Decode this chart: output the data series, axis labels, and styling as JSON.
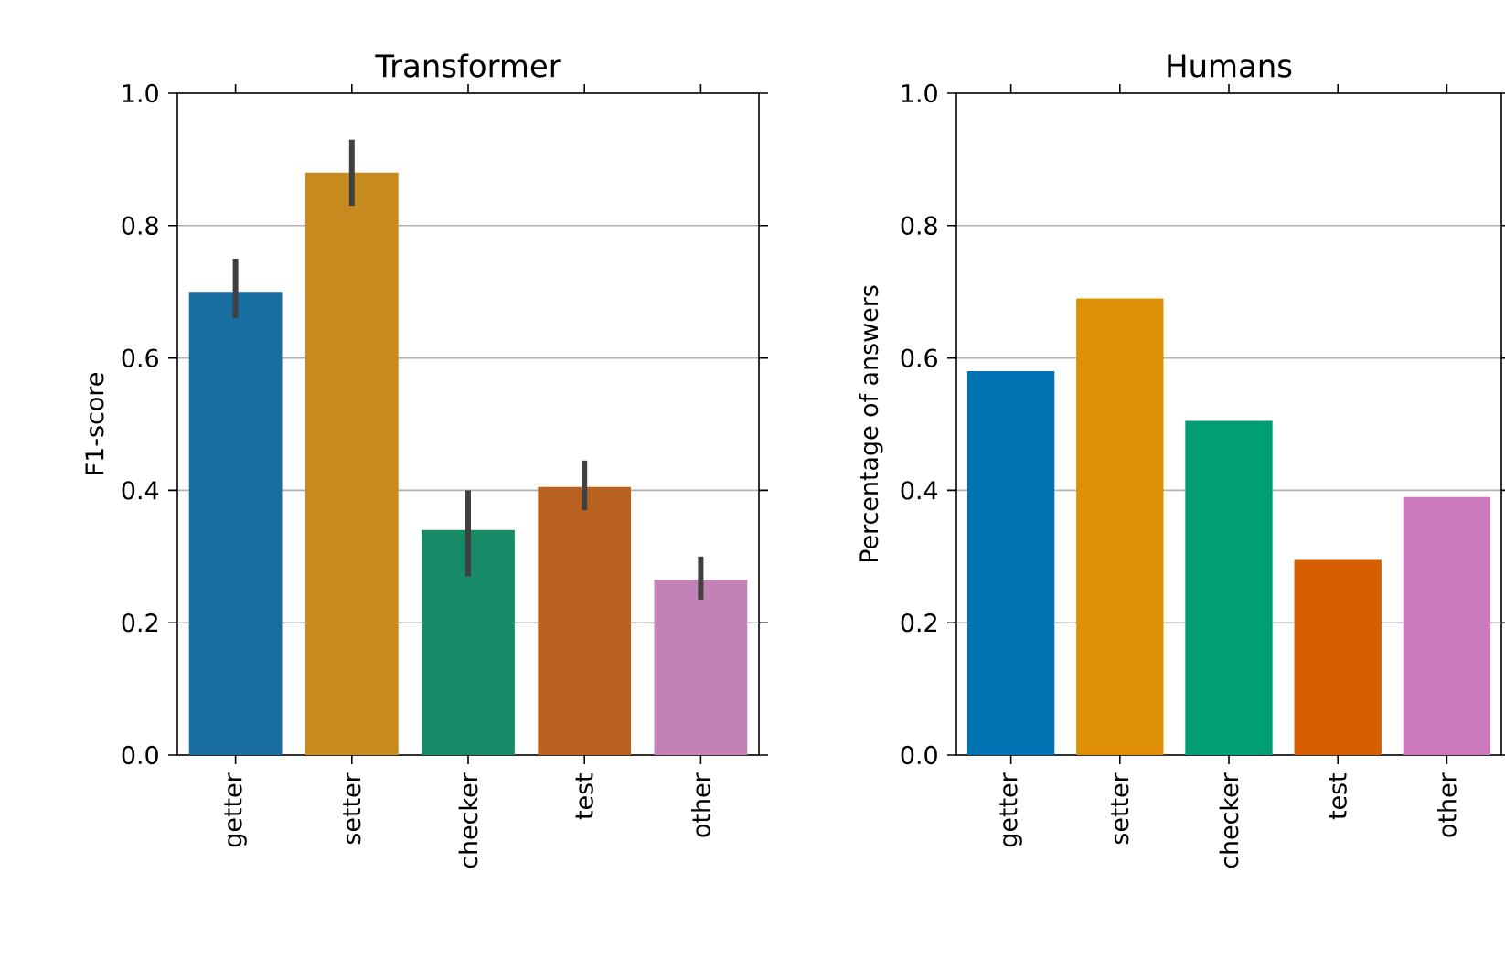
{
  "chart_data": [
    {
      "type": "bar",
      "title": "Transformer",
      "ylabel": "F1-score",
      "categories": [
        "getter",
        "setter",
        "checker",
        "test",
        "other"
      ],
      "values": [
        0.7,
        0.88,
        0.34,
        0.405,
        0.265
      ],
      "colors": [
        "#186ea0",
        "#c68a1e",
        "#178a68",
        "#b9621f",
        "#c282b5"
      ],
      "errors": [
        [
          0.66,
          0.75
        ],
        [
          0.83,
          0.93
        ],
        [
          0.27,
          0.4
        ],
        [
          0.37,
          0.445
        ],
        [
          0.235,
          0.3
        ]
      ],
      "ylim": [
        0,
        1
      ],
      "yticks": [
        {
          "value": 0,
          "label": "0.0"
        },
        {
          "value": 0.2,
          "label": "0.2"
        },
        {
          "value": 0.4,
          "label": "0.4"
        },
        {
          "value": 0.6,
          "label": "0.6"
        },
        {
          "value": 0.8,
          "label": "0.8"
        },
        {
          "value": 1,
          "label": "1.0"
        }
      ],
      "grid": "y"
    },
    {
      "type": "bar",
      "title": "Humans",
      "ylabel": "Percentage of answers",
      "categories": [
        "getter",
        "setter",
        "checker",
        "test",
        "other"
      ],
      "values": [
        0.58,
        0.69,
        0.505,
        0.295,
        0.39
      ],
      "colors": [
        "#0173b2",
        "#de8f05",
        "#029e73",
        "#d55e00",
        "#cc78bc"
      ],
      "ylim": [
        0,
        1
      ],
      "yticks": [
        {
          "value": 0,
          "label": "0.0"
        },
        {
          "value": 0.2,
          "label": "0.2"
        },
        {
          "value": 0.4,
          "label": "0.4"
        },
        {
          "value": 0.6,
          "label": "0.6"
        },
        {
          "value": 0.8,
          "label": "0.8"
        },
        {
          "value": 1,
          "label": "1.0"
        }
      ],
      "grid": "y"
    }
  ]
}
